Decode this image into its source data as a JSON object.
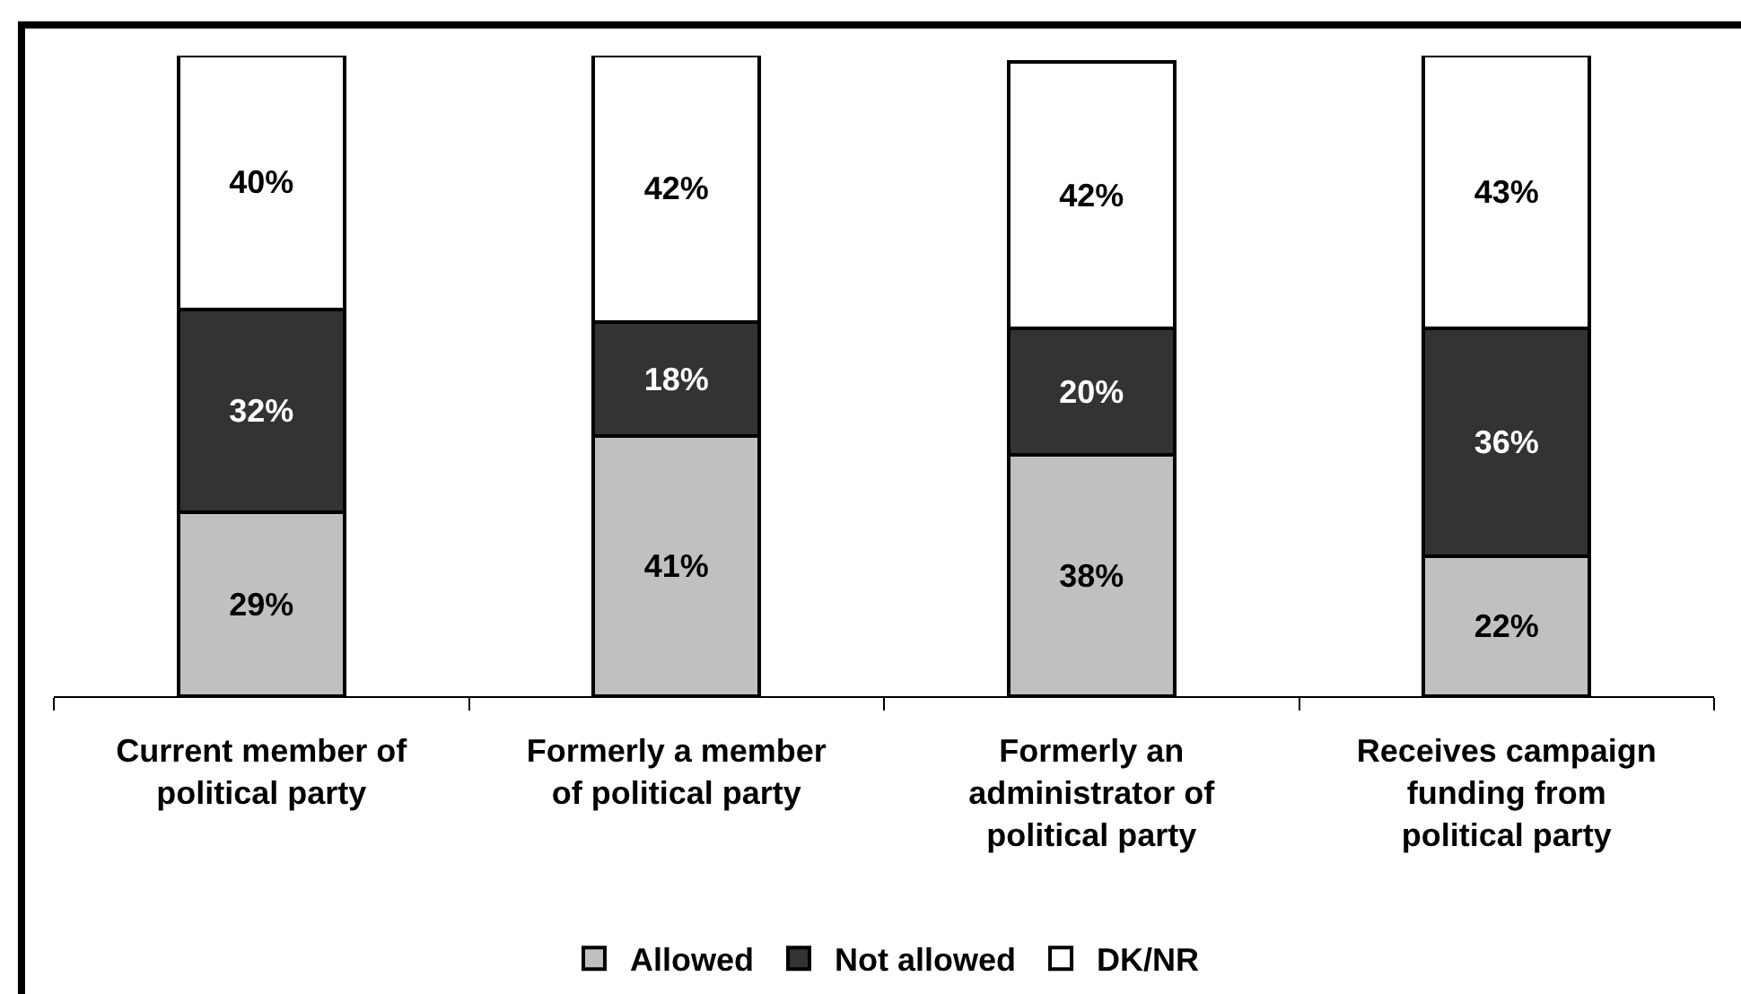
{
  "chart_data": {
    "type": "bar",
    "stacked": true,
    "categories": [
      "Current member of political party",
      "Formerly a member of political party",
      "Formerly an administrator of political party",
      "Receives campaign funding from political party"
    ],
    "series": [
      {
        "name": "Allowed",
        "color": "#c0c0c0",
        "values": [
          29,
          41,
          38,
          22
        ],
        "value_labels": [
          "29%",
          "41%",
          "38%",
          "22%"
        ]
      },
      {
        "name": "Not allowed",
        "color": "#333333",
        "values": [
          32,
          18,
          20,
          36
        ],
        "value_labels": [
          "32%",
          "18%",
          "20%",
          "36%"
        ]
      },
      {
        "name": "DK/NR",
        "color": "#ffffff",
        "values": [
          40,
          42,
          42,
          43
        ],
        "value_labels": [
          "40%",
          "42%",
          "42%",
          "43%"
        ]
      }
    ],
    "ylim": [
      0,
      101
    ],
    "tick_labels": "x",
    "legend": "bottom"
  }
}
